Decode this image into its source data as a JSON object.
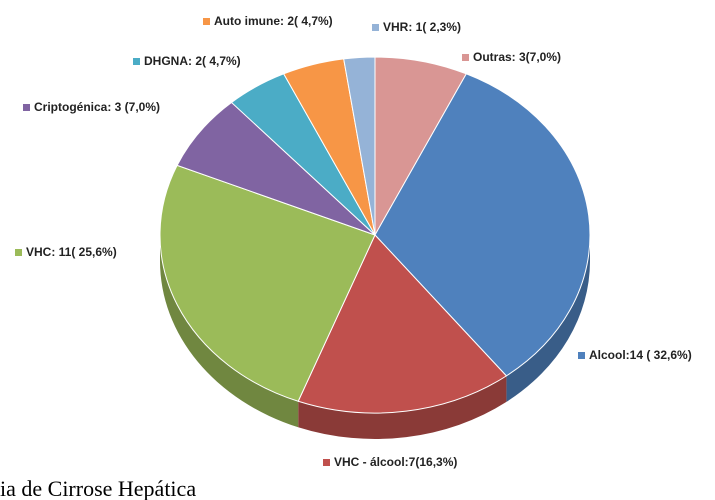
{
  "chart_data": {
    "type": "pie",
    "caption": "ia de Cirrose Hepática",
    "values": [
      3,
      14,
      7,
      11,
      3,
      2,
      2,
      1
    ],
    "value_labels": [
      "Outras: 3(7,0%)",
      "Alcool:14 ( 32,6%)",
      "VHC - álcool:7(16,3%)",
      "VHC: 11( 25,6%)",
      "Criptogénica: 3 (7,0%)",
      "DHGNA: 2( 4,7%)",
      "Auto imune: 2( 4,7%)",
      "VHR: 1( 2,3%)"
    ],
    "colors": [
      "#d99694",
      "#4f81bd",
      "#c0504d",
      "#9bbb59",
      "#8064a2",
      "#4bacc6",
      "#f79646",
      "#95b3d7"
    ]
  }
}
